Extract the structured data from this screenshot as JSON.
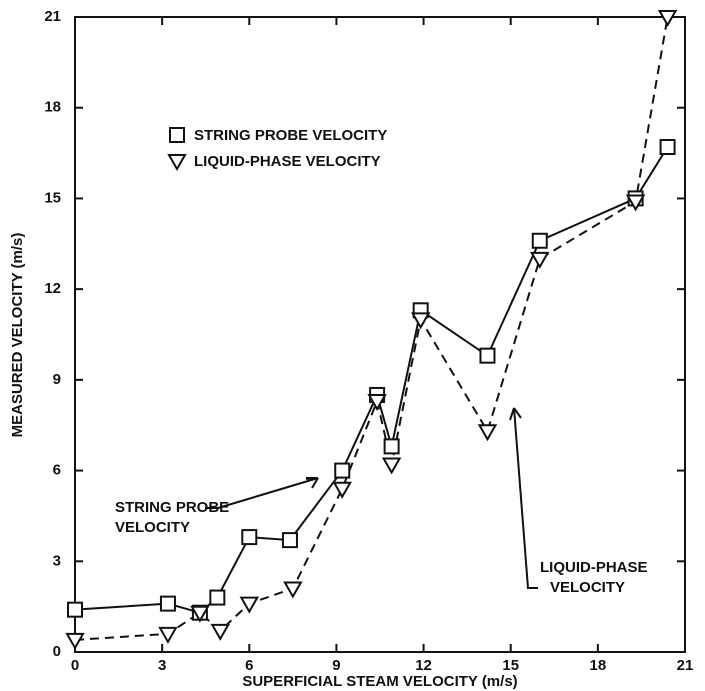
{
  "chart_data": {
    "type": "line",
    "xlabel": "SUPERFICIAL STEAM VELOCITY (m/s)",
    "ylabel": "MEASURED VELOCITY (m/s)",
    "xlim": [
      0,
      21
    ],
    "xticks": [
      0,
      3,
      6,
      9,
      12,
      15,
      18,
      21
    ],
    "ylim": [
      0,
      21
    ],
    "yticks": [
      0,
      3,
      6,
      9,
      12,
      15,
      18,
      21
    ],
    "series": [
      {
        "name": "STRING PROBE VELOCITY",
        "color": "#111111",
        "marker": "square",
        "dash": false,
        "x": [
          0,
          3.2,
          4.3,
          4.9,
          6.0,
          7.4,
          9.2,
          10.4,
          10.9,
          11.9,
          14.2,
          16.0,
          19.3,
          20.4
        ],
        "values": [
          1.4,
          1.6,
          1.3,
          1.8,
          3.8,
          3.7,
          6.0,
          8.5,
          6.8,
          11.3,
          9.8,
          13.6,
          15.0,
          16.7
        ]
      },
      {
        "name": "LIQUID-PHASE VELOCITY",
        "color": "#111111",
        "marker": "triangle-down",
        "dash": true,
        "x": [
          0,
          3.2,
          4.3,
          5.0,
          6.0,
          7.5,
          9.2,
          10.4,
          10.9,
          11.9,
          14.2,
          16.0,
          19.3,
          20.4
        ],
        "values": [
          0.4,
          0.6,
          1.3,
          0.7,
          1.6,
          2.1,
          5.4,
          8.3,
          6.2,
          11.0,
          7.3,
          13.0,
          14.9,
          21.0
        ]
      }
    ],
    "annotations": [
      {
        "lines": [
          "STRING PROBE",
          "VELOCITY"
        ]
      },
      {
        "lines": [
          "LIQUID-PHASE",
          "VELOCITY"
        ]
      }
    ]
  }
}
